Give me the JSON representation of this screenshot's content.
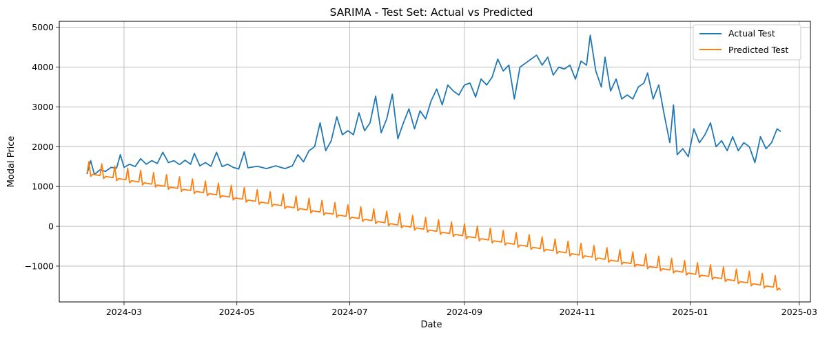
{
  "chart_data": {
    "type": "line",
    "title": "SARIMA - Test Set: Actual vs Predicted",
    "xlabel": "Date",
    "ylabel": "Modal Price",
    "x_range": [
      "2024-01-26",
      "2025-03-07"
    ],
    "ylim": [
      -1900,
      5150
    ],
    "grid": true,
    "legend_position": "top-right",
    "x_tick_labels": [
      "2024-03",
      "2024-05",
      "2024-07",
      "2024-09",
      "2024-11",
      "2025-01",
      "2025-03"
    ],
    "x_tick_dates": [
      "2024-03-01",
      "2024-05-01",
      "2024-07-01",
      "2024-09-01",
      "2024-11-01",
      "2025-01-01",
      "2025-03-01"
    ],
    "y_ticks": [
      -1000,
      0,
      1000,
      2000,
      3000,
      4000,
      5000
    ],
    "y_tick_labels": [
      "−1000",
      "0",
      "1000",
      "2000",
      "3000",
      "4000",
      "5000"
    ],
    "series": [
      {
        "name": "Actual Test",
        "color": "#1f77b4",
        "points": [
          [
            "2024-02-10",
            1310
          ],
          [
            "2024-02-12",
            1650
          ],
          [
            "2024-02-14",
            1300
          ],
          [
            "2024-02-17",
            1420
          ],
          [
            "2024-02-20",
            1380
          ],
          [
            "2024-02-23",
            1480
          ],
          [
            "2024-02-26",
            1460
          ],
          [
            "2024-02-28",
            1800
          ],
          [
            "2024-03-01",
            1480
          ],
          [
            "2024-03-04",
            1560
          ],
          [
            "2024-03-07",
            1500
          ],
          [
            "2024-03-10",
            1700
          ],
          [
            "2024-03-13",
            1560
          ],
          [
            "2024-03-16",
            1650
          ],
          [
            "2024-03-19",
            1580
          ],
          [
            "2024-03-22",
            1860
          ],
          [
            "2024-03-25",
            1600
          ],
          [
            "2024-03-28",
            1650
          ],
          [
            "2024-03-31",
            1550
          ],
          [
            "2024-04-03",
            1660
          ],
          [
            "2024-04-06",
            1560
          ],
          [
            "2024-04-08",
            1830
          ],
          [
            "2024-04-11",
            1520
          ],
          [
            "2024-04-14",
            1600
          ],
          [
            "2024-04-17",
            1510
          ],
          [
            "2024-04-20",
            1860
          ],
          [
            "2024-04-23",
            1500
          ],
          [
            "2024-04-26",
            1560
          ],
          [
            "2024-04-29",
            1480
          ],
          [
            "2024-05-02",
            1440
          ],
          [
            "2024-05-05",
            1870
          ],
          [
            "2024-05-07",
            1470
          ],
          [
            "2024-05-12",
            1510
          ],
          [
            "2024-05-17",
            1450
          ],
          [
            "2024-05-22",
            1520
          ],
          [
            "2024-05-27",
            1450
          ],
          [
            "2024-05-31",
            1520
          ],
          [
            "2024-06-03",
            1800
          ],
          [
            "2024-06-06",
            1620
          ],
          [
            "2024-06-09",
            1900
          ],
          [
            "2024-06-12",
            2000
          ],
          [
            "2024-06-15",
            2600
          ],
          [
            "2024-06-18",
            1900
          ],
          [
            "2024-06-21",
            2150
          ],
          [
            "2024-06-24",
            2750
          ],
          [
            "2024-06-27",
            2300
          ],
          [
            "2024-06-30",
            2400
          ],
          [
            "2024-07-03",
            2300
          ],
          [
            "2024-07-06",
            2850
          ],
          [
            "2024-07-09",
            2400
          ],
          [
            "2024-07-12",
            2600
          ],
          [
            "2024-07-15",
            3270
          ],
          [
            "2024-07-18",
            2350
          ],
          [
            "2024-07-21",
            2700
          ],
          [
            "2024-07-24",
            3320
          ],
          [
            "2024-07-27",
            2200
          ],
          [
            "2024-07-30",
            2600
          ],
          [
            "2024-08-02",
            2950
          ],
          [
            "2024-08-05",
            2450
          ],
          [
            "2024-08-08",
            2900
          ],
          [
            "2024-08-11",
            2700
          ],
          [
            "2024-08-14",
            3150
          ],
          [
            "2024-08-17",
            3450
          ],
          [
            "2024-08-20",
            3050
          ],
          [
            "2024-08-23",
            3550
          ],
          [
            "2024-08-26",
            3400
          ],
          [
            "2024-08-29",
            3300
          ],
          [
            "2024-09-01",
            3550
          ],
          [
            "2024-09-04",
            3600
          ],
          [
            "2024-09-07",
            3250
          ],
          [
            "2024-09-10",
            3700
          ],
          [
            "2024-09-13",
            3550
          ],
          [
            "2024-09-16",
            3750
          ],
          [
            "2024-09-19",
            4200
          ],
          [
            "2024-09-22",
            3900
          ],
          [
            "2024-09-25",
            4050
          ],
          [
            "2024-09-28",
            3200
          ],
          [
            "2024-10-01",
            4000
          ],
          [
            "2024-10-04",
            4100
          ],
          [
            "2024-10-07",
            4200
          ],
          [
            "2024-10-10",
            4300
          ],
          [
            "2024-10-13",
            4050
          ],
          [
            "2024-10-16",
            4250
          ],
          [
            "2024-10-19",
            3800
          ],
          [
            "2024-10-22",
            4000
          ],
          [
            "2024-10-25",
            3950
          ],
          [
            "2024-10-28",
            4050
          ],
          [
            "2024-10-31",
            3700
          ],
          [
            "2024-11-03",
            4150
          ],
          [
            "2024-11-06",
            4050
          ],
          [
            "2024-11-08",
            4800
          ],
          [
            "2024-11-11",
            3900
          ],
          [
            "2024-11-14",
            3500
          ],
          [
            "2024-11-16",
            4250
          ],
          [
            "2024-11-19",
            3400
          ],
          [
            "2024-11-22",
            3700
          ],
          [
            "2024-11-25",
            3200
          ],
          [
            "2024-11-28",
            3300
          ],
          [
            "2024-12-01",
            3200
          ],
          [
            "2024-12-04",
            3500
          ],
          [
            "2024-12-07",
            3600
          ],
          [
            "2024-12-09",
            3850
          ],
          [
            "2024-12-12",
            3200
          ],
          [
            "2024-12-15",
            3550
          ],
          [
            "2024-12-18",
            2800
          ],
          [
            "2024-12-21",
            2100
          ],
          [
            "2024-12-23",
            3050
          ],
          [
            "2024-12-25",
            1800
          ],
          [
            "2024-12-28",
            1950
          ],
          [
            "2024-12-31",
            1750
          ],
          [
            "2025-01-03",
            2450
          ],
          [
            "2025-01-06",
            2100
          ],
          [
            "2025-01-09",
            2300
          ],
          [
            "2025-01-12",
            2600
          ],
          [
            "2025-01-15",
            2000
          ],
          [
            "2025-01-18",
            2150
          ],
          [
            "2025-01-21",
            1900
          ],
          [
            "2025-01-24",
            2250
          ],
          [
            "2025-01-27",
            1900
          ],
          [
            "2025-01-30",
            2100
          ],
          [
            "2025-02-02",
            2000
          ],
          [
            "2025-02-05",
            1600
          ],
          [
            "2025-02-08",
            2250
          ],
          [
            "2025-02-11",
            1950
          ],
          [
            "2025-02-14",
            2100
          ],
          [
            "2025-02-17",
            2450
          ],
          [
            "2025-02-19",
            2380
          ]
        ]
      },
      {
        "name": "Predicted Test",
        "color": "#ff7f0e",
        "trend_start": [
          "2024-02-10",
          1330
        ],
        "trend_end": [
          "2025-02-19",
          -1560
        ],
        "spike_height": 300,
        "spike_interval_days": 7,
        "end_dip": -1600
      }
    ]
  }
}
